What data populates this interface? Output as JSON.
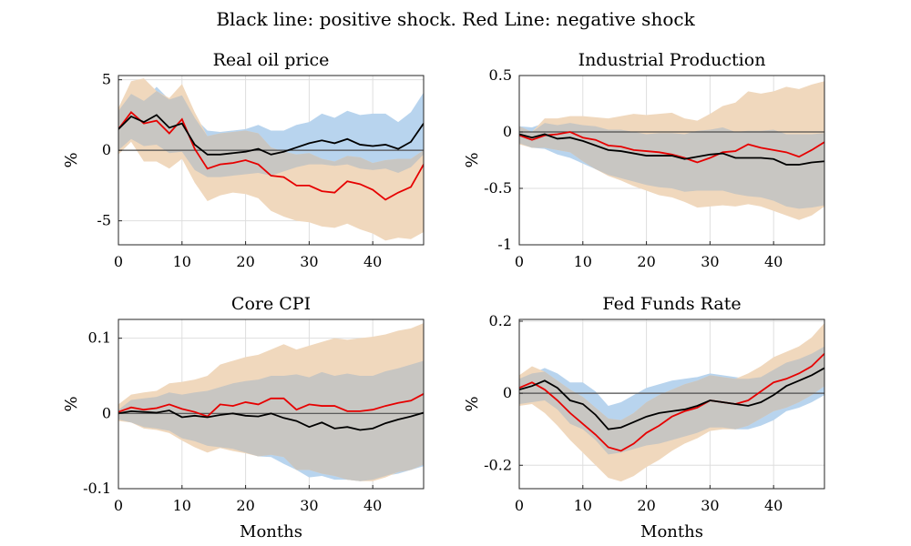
{
  "figure_title": "Black line: positive shock. Red Line: negative shock",
  "colors": {
    "positive_line": "#000000",
    "negative_line": "#e60000",
    "positive_band": "#b8d4ee",
    "negative_band": "#f0d8bd",
    "overlap_band": "#c8c6c2",
    "zero_line": "#4d4d4d"
  },
  "chart_data": [
    {
      "type": "line",
      "title": "Real oil price",
      "xlabel": "",
      "ylabel": "%",
      "xlim": [
        0,
        48
      ],
      "ylim": [
        -6.7,
        5.3
      ],
      "xticks": [
        0,
        10,
        20,
        30,
        40
      ],
      "yticks": [
        5,
        0,
        -5
      ],
      "ytick_labels": [
        "5",
        "0",
        "-5"
      ],
      "grid": true,
      "x": [
        0,
        2,
        4,
        6,
        8,
        10,
        12,
        14,
        16,
        18,
        20,
        22,
        24,
        26,
        28,
        30,
        32,
        34,
        36,
        38,
        40,
        42,
        44,
        46,
        48
      ],
      "series": [
        {
          "role": "positive",
          "values": [
            1.5,
            2.4,
            2.0,
            2.5,
            1.6,
            1.9,
            0.4,
            -0.3,
            -0.3,
            -0.2,
            -0.1,
            0.1,
            -0.3,
            -0.1,
            0.2,
            0.5,
            0.7,
            0.5,
            0.8,
            0.4,
            0.3,
            0.4,
            0.1,
            0.6,
            1.9
          ],
          "band_low": [
            0.0,
            0.8,
            0.3,
            0.4,
            -0.2,
            -0.1,
            -1.4,
            -1.9,
            -1.9,
            -1.8,
            -1.7,
            -1.6,
            -1.8,
            -1.5,
            -1.2,
            -1.0,
            -1.0,
            -1.1,
            -1.0,
            -1.3,
            -1.4,
            -1.3,
            -1.6,
            -1.2,
            -0.3
          ],
          "band_high": [
            2.8,
            4.0,
            3.5,
            4.5,
            3.6,
            3.9,
            2.3,
            1.4,
            1.3,
            1.4,
            1.5,
            1.8,
            1.4,
            1.4,
            1.8,
            2.0,
            2.6,
            2.3,
            2.8,
            2.5,
            2.6,
            2.6,
            2.0,
            2.7,
            4.1
          ]
        },
        {
          "role": "negative",
          "values": [
            1.5,
            2.7,
            1.9,
            2.1,
            1.2,
            2.2,
            0.1,
            -1.3,
            -1.0,
            -0.9,
            -0.7,
            -1.0,
            -1.8,
            -1.9,
            -2.5,
            -2.5,
            -2.9,
            -3.0,
            -2.2,
            -2.4,
            -2.8,
            -3.5,
            -3.0,
            -2.6,
            -1.0
          ],
          "band_low": [
            -0.3,
            0.6,
            -0.8,
            -0.8,
            -1.3,
            -0.6,
            -2.3,
            -3.6,
            -3.2,
            -3.0,
            -3.1,
            -3.4,
            -4.3,
            -4.7,
            -5.0,
            -5.1,
            -5.4,
            -5.5,
            -5.2,
            -5.6,
            -5.9,
            -6.4,
            -6.2,
            -6.3,
            -5.8
          ],
          "band_high": [
            3.0,
            4.9,
            5.1,
            4.2,
            3.7,
            4.7,
            2.7,
            1.0,
            1.2,
            1.3,
            1.4,
            1.2,
            0.2,
            -0.1,
            -0.3,
            -0.2,
            -0.6,
            -0.8,
            -0.4,
            -0.5,
            -0.9,
            -0.7,
            -0.6,
            -0.6,
            0.0
          ]
        }
      ]
    },
    {
      "type": "line",
      "title": "Industrial Production",
      "xlabel": "",
      "ylabel": "%",
      "xlim": [
        0,
        48
      ],
      "ylim": [
        -1.0,
        0.5
      ],
      "xticks": [
        0,
        10,
        20,
        30,
        40
      ],
      "yticks": [
        0.5,
        0,
        -0.5,
        -1
      ],
      "ytick_labels": [
        "0.5",
        "0",
        "-0.5",
        "-1"
      ],
      "grid": true,
      "x": [
        0,
        2,
        4,
        6,
        8,
        10,
        12,
        14,
        16,
        18,
        20,
        22,
        24,
        26,
        28,
        30,
        32,
        34,
        36,
        38,
        40,
        42,
        44,
        46,
        48
      ],
      "series": [
        {
          "role": "positive",
          "values": [
            -0.02,
            -0.05,
            -0.02,
            -0.06,
            -0.05,
            -0.08,
            -0.12,
            -0.16,
            -0.17,
            -0.19,
            -0.21,
            -0.21,
            -0.21,
            -0.24,
            -0.22,
            -0.2,
            -0.19,
            -0.23,
            -0.23,
            -0.23,
            -0.24,
            -0.29,
            -0.29,
            -0.27,
            -0.26
          ],
          "band_low": [
            -0.1,
            -0.14,
            -0.15,
            -0.2,
            -0.23,
            -0.28,
            -0.33,
            -0.38,
            -0.41,
            -0.44,
            -0.47,
            -0.49,
            -0.5,
            -0.53,
            -0.52,
            -0.52,
            -0.52,
            -0.55,
            -0.57,
            -0.58,
            -0.61,
            -0.66,
            -0.68,
            -0.67,
            -0.65
          ],
          "band_high": [
            0.05,
            0.04,
            0.08,
            0.06,
            0.08,
            0.06,
            0.05,
            0.02,
            0.02,
            0.0,
            -0.02,
            -0.01,
            -0.01,
            -0.02,
            0.01,
            0.02,
            0.04,
            0.0,
            0.01,
            0.01,
            0.02,
            -0.02,
            -0.02,
            -0.02,
            -0.01
          ]
        },
        {
          "role": "negative",
          "values": [
            -0.03,
            -0.07,
            -0.03,
            -0.02,
            0.0,
            -0.05,
            -0.07,
            -0.12,
            -0.13,
            -0.16,
            -0.17,
            -0.18,
            -0.2,
            -0.23,
            -0.27,
            -0.23,
            -0.18,
            -0.17,
            -0.11,
            -0.14,
            -0.16,
            -0.18,
            -0.22,
            -0.16,
            -0.09
          ],
          "band_low": [
            -0.11,
            -0.14,
            -0.14,
            -0.16,
            -0.18,
            -0.26,
            -0.33,
            -0.39,
            -0.43,
            -0.48,
            -0.52,
            -0.56,
            -0.58,
            -0.62,
            -0.67,
            -0.66,
            -0.65,
            -0.66,
            -0.64,
            -0.66,
            -0.7,
            -0.74,
            -0.78,
            -0.74,
            -0.66
          ],
          "band_high": [
            0.05,
            0.0,
            0.12,
            0.12,
            0.14,
            0.14,
            0.13,
            0.12,
            0.14,
            0.16,
            0.15,
            0.16,
            0.17,
            0.12,
            0.1,
            0.16,
            0.23,
            0.26,
            0.36,
            0.34,
            0.36,
            0.4,
            0.38,
            0.42,
            0.45
          ]
        }
      ]
    },
    {
      "type": "line",
      "title": "Core CPI",
      "xlabel": "Months",
      "ylabel": "%",
      "xlim": [
        0,
        48
      ],
      "ylim": [
        -0.1,
        0.125
      ],
      "xticks": [
        0,
        10,
        20,
        30,
        40
      ],
      "yticks": [
        0.1,
        0,
        -0.1
      ],
      "ytick_labels": [
        "0.1",
        "0",
        "-0.1"
      ],
      "grid": true,
      "x": [
        0,
        2,
        4,
        6,
        8,
        10,
        12,
        14,
        16,
        18,
        20,
        22,
        24,
        26,
        28,
        30,
        32,
        34,
        36,
        38,
        40,
        42,
        44,
        46,
        48
      ],
      "series": [
        {
          "role": "positive",
          "values": [
            0.0,
            0.003,
            0.002,
            0.001,
            0.004,
            -0.005,
            -0.003,
            -0.005,
            -0.002,
            0.0,
            -0.003,
            -0.004,
            0.0,
            -0.006,
            -0.01,
            -0.018,
            -0.012,
            -0.02,
            -0.018,
            -0.022,
            -0.02,
            -0.013,
            -0.008,
            -0.004,
            0.001
          ],
          "band_low": [
            -0.008,
            -0.012,
            -0.018,
            -0.02,
            -0.023,
            -0.033,
            -0.037,
            -0.043,
            -0.045,
            -0.047,
            -0.052,
            -0.057,
            -0.058,
            -0.067,
            -0.075,
            -0.085,
            -0.083,
            -0.088,
            -0.088,
            -0.09,
            -0.088,
            -0.083,
            -0.08,
            -0.075,
            -0.07
          ],
          "band_high": [
            0.005,
            0.018,
            0.02,
            0.022,
            0.028,
            0.025,
            0.028,
            0.03,
            0.035,
            0.04,
            0.043,
            0.045,
            0.05,
            0.05,
            0.052,
            0.048,
            0.055,
            0.05,
            0.053,
            0.05,
            0.05,
            0.056,
            0.06,
            0.065,
            0.07
          ]
        },
        {
          "role": "negative",
          "values": [
            0.002,
            0.008,
            0.005,
            0.007,
            0.012,
            0.006,
            0.002,
            -0.004,
            0.012,
            0.01,
            0.015,
            0.012,
            0.02,
            0.02,
            0.005,
            0.012,
            0.01,
            0.01,
            0.003,
            0.003,
            0.005,
            0.01,
            0.014,
            0.017,
            0.026
          ],
          "band_low": [
            -0.01,
            -0.012,
            -0.02,
            -0.022,
            -0.026,
            -0.036,
            -0.045,
            -0.052,
            -0.046,
            -0.05,
            -0.053,
            -0.057,
            -0.055,
            -0.058,
            -0.075,
            -0.075,
            -0.08,
            -0.083,
            -0.088,
            -0.09,
            -0.09,
            -0.085,
            -0.078,
            -0.075,
            -0.068
          ],
          "band_high": [
            0.012,
            0.025,
            0.028,
            0.03,
            0.04,
            0.042,
            0.045,
            0.05,
            0.065,
            0.07,
            0.075,
            0.078,
            0.085,
            0.092,
            0.085,
            0.09,
            0.095,
            0.1,
            0.098,
            0.1,
            0.102,
            0.105,
            0.11,
            0.113,
            0.12
          ]
        }
      ]
    },
    {
      "type": "line",
      "title": "Fed Funds Rate",
      "xlabel": "Months",
      "ylabel": "%",
      "xlim": [
        0,
        48
      ],
      "ylim": [
        -0.265,
        0.205
      ],
      "xticks": [
        0,
        10,
        20,
        30,
        40
      ],
      "yticks": [
        0.2,
        0,
        -0.2
      ],
      "ytick_labels": [
        "0.2",
        "0",
        "-0.2"
      ],
      "grid": true,
      "x": [
        0,
        2,
        4,
        6,
        8,
        10,
        12,
        14,
        16,
        18,
        20,
        22,
        24,
        26,
        28,
        30,
        32,
        34,
        36,
        38,
        40,
        42,
        44,
        46,
        48
      ],
      "series": [
        {
          "role": "positive",
          "values": [
            0.01,
            0.02,
            0.035,
            0.015,
            -0.02,
            -0.03,
            -0.06,
            -0.1,
            -0.095,
            -0.08,
            -0.065,
            -0.055,
            -0.05,
            -0.045,
            -0.035,
            -0.02,
            -0.025,
            -0.03,
            -0.035,
            -0.025,
            -0.005,
            0.02,
            0.035,
            0.05,
            0.07
          ],
          "band_low": [
            -0.03,
            -0.025,
            -0.02,
            -0.045,
            -0.085,
            -0.1,
            -0.13,
            -0.17,
            -0.165,
            -0.155,
            -0.145,
            -0.14,
            -0.13,
            -0.12,
            -0.11,
            -0.095,
            -0.095,
            -0.1,
            -0.1,
            -0.09,
            -0.075,
            -0.05,
            -0.04,
            -0.025,
            -0.005
          ],
          "band_high": [
            0.04,
            0.055,
            0.07,
            0.055,
            0.03,
            0.03,
            0.005,
            -0.035,
            -0.025,
            -0.005,
            0.015,
            0.025,
            0.035,
            0.04,
            0.045,
            0.055,
            0.05,
            0.045,
            0.04,
            0.045,
            0.065,
            0.085,
            0.095,
            0.11,
            0.13
          ]
        },
        {
          "role": "negative",
          "values": [
            0.015,
            0.03,
            0.01,
            -0.02,
            -0.055,
            -0.085,
            -0.115,
            -0.15,
            -0.16,
            -0.14,
            -0.11,
            -0.09,
            -0.065,
            -0.05,
            -0.04,
            -0.02,
            -0.025,
            -0.03,
            -0.02,
            0.005,
            0.03,
            0.04,
            0.055,
            0.075,
            0.11
          ],
          "band_low": [
            -0.035,
            -0.03,
            -0.055,
            -0.09,
            -0.13,
            -0.165,
            -0.2,
            -0.235,
            -0.245,
            -0.23,
            -0.205,
            -0.185,
            -0.16,
            -0.14,
            -0.125,
            -0.105,
            -0.1,
            -0.1,
            -0.09,
            -0.07,
            -0.05,
            -0.04,
            -0.025,
            -0.005,
            0.02
          ],
          "band_high": [
            0.05,
            0.075,
            0.06,
            0.035,
            0.01,
            -0.01,
            -0.04,
            -0.07,
            -0.075,
            -0.055,
            -0.025,
            -0.005,
            0.01,
            0.025,
            0.035,
            0.05,
            0.045,
            0.04,
            0.055,
            0.075,
            0.1,
            0.115,
            0.13,
            0.155,
            0.195
          ]
        }
      ]
    }
  ]
}
